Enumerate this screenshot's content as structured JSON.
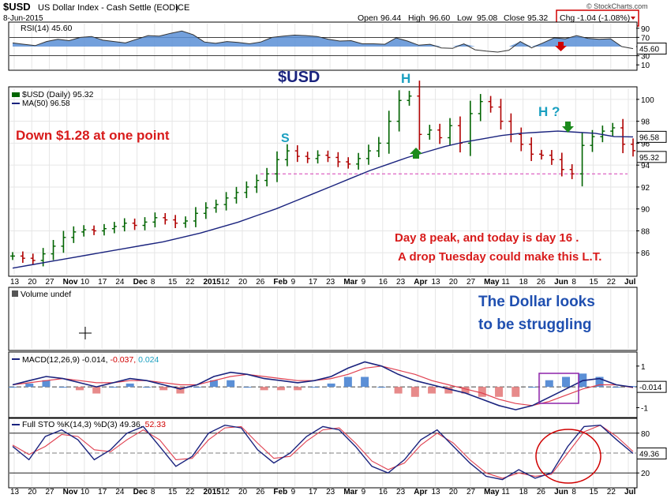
{
  "header": {
    "symbol": "$USD",
    "name": "US Dollar Index - Cash Settle (EOD)",
    "exchange": "ICE",
    "date": "8-Jun-2015",
    "open_label": "Open",
    "open": "96.44",
    "high_label": "High",
    "high": "96.60",
    "low_label": "Low",
    "low": "95.08",
    "close_label": "Close",
    "close": "95.32",
    "chg": "Chg -1.04 (-1.08%)",
    "watermark": "© StockCharts.com"
  },
  "colors": {
    "bar_up": "#006400",
    "bar_down": "#b00000",
    "ma": "#1a237e",
    "annotation_red": "#d81b1b",
    "annotation_blue": "#1f4fb0",
    "annotation_cyan": "#1a9fc0",
    "panel_bg": "#ffffff",
    "box_purple": "#8e24aa"
  },
  "x_axis": {
    "labels": [
      "13",
      "20",
      "27",
      "Nov",
      "10",
      "17",
      "24",
      "Dec",
      "8",
      "15",
      "22",
      "2015",
      "12",
      "20",
      "26",
      "Feb",
      "9",
      "17",
      "23",
      "Mar",
      "9",
      "16",
      "23",
      "Apr",
      "13",
      "20",
      "27",
      "May",
      "11",
      "18",
      "26",
      "Jun",
      "8",
      "15",
      "22",
      "Jul"
    ]
  },
  "chart_data": [
    {
      "panel": "rsi",
      "type": "line",
      "title": "RSI(14) 45.60",
      "series": [
        {
          "name": "RSI(14)",
          "values": [
            58,
            55,
            52,
            61,
            66,
            63,
            70,
            72,
            64,
            61,
            58,
            66,
            74,
            73,
            79,
            84,
            76,
            60,
            57,
            61,
            59,
            56,
            60,
            70,
            73,
            75,
            74,
            72,
            66,
            62,
            63,
            56,
            56,
            55,
            69,
            62,
            53,
            55,
            47,
            46,
            56,
            43,
            40,
            38,
            42,
            61,
            47,
            58,
            69,
            67,
            74,
            68,
            66,
            67,
            50,
            45.6
          ]
        }
      ],
      "ylim": [
        0,
        100
      ],
      "yticks": [
        10,
        30,
        50,
        70,
        90
      ],
      "reference_lines": [
        30,
        70
      ],
      "last_value": "45.60"
    },
    {
      "panel": "price",
      "type": "ohlc",
      "title": "$USD (Daily) 95.32",
      "series": [
        {
          "name": "$USD (Daily)",
          "values": [
            85.7,
            85.5,
            85.3,
            85.9,
            86.6,
            87.4,
            87.9,
            88.1,
            88.0,
            88.2,
            88.4,
            88.7,
            88.5,
            88.8,
            89.2,
            89.0,
            88.7,
            88.9,
            89.6,
            90.1,
            90.4,
            91.0,
            91.5,
            92.0,
            92.6,
            93.2,
            94.5,
            95.3,
            94.8,
            94.6,
            94.9,
            94.7,
            94.3,
            94.1,
            94.6,
            95.3,
            96.0,
            98.0,
            99.9,
            100.3,
            96.8,
            97.2,
            96.5,
            97.6,
            96.0,
            98.7,
            99.8,
            99.3,
            98.0,
            96.8,
            95.9,
            95.0,
            94.9,
            94.5,
            93.6,
            93.2,
            95.8,
            96.6,
            97.1,
            97.4,
            95.9,
            95.32
          ]
        },
        {
          "name": "MA(50)",
          "values": [
            84.6,
            84.9,
            85.2,
            85.5,
            85.8,
            86.1,
            86.4,
            86.7,
            87.0,
            87.4,
            87.8,
            88.3,
            88.8,
            89.4,
            90.0,
            90.7,
            91.4,
            92.1,
            92.8,
            93.5,
            94.1,
            94.7,
            95.2,
            95.7,
            96.1,
            96.4,
            96.7,
            96.9,
            97.0,
            97.1,
            97.0,
            96.9,
            96.6,
            96.58
          ]
        }
      ],
      "ylim": [
        84,
        101
      ],
      "yticks": [
        86,
        88,
        90,
        92,
        94,
        96,
        98,
        100
      ],
      "support_line": 93.2,
      "ma_label": "MA(50) 96.58",
      "ma_last": "96.58",
      "close_last": "95.32"
    },
    {
      "panel": "volume",
      "type": "bar",
      "title": "Volume undef"
    },
    {
      "panel": "macd",
      "type": "line",
      "title_prefix": "MACD(12,26,9)",
      "title_values": [
        "-0.014",
        "-0.037",
        "0.024"
      ],
      "series": [
        {
          "name": "MACD",
          "values": [
            0.1,
            0.3,
            0.5,
            0.4,
            0.2,
            0.0,
            0.2,
            0.4,
            0.3,
            0.1,
            -0.1,
            0.1,
            0.5,
            0.7,
            0.6,
            0.4,
            0.3,
            0.2,
            0.3,
            0.5,
            0.9,
            1.2,
            1.0,
            0.6,
            0.3,
            0.1,
            -0.1,
            -0.3,
            -0.6,
            -0.9,
            -1.1,
            -0.9,
            -0.5,
            -0.1,
            0.3,
            0.4,
            0.1,
            -0.014
          ]
        },
        {
          "name": "Signal",
          "values": [
            0.1,
            0.2,
            0.3,
            0.4,
            0.3,
            0.2,
            0.2,
            0.3,
            0.3,
            0.2,
            0.1,
            0.1,
            0.3,
            0.5,
            0.6,
            0.5,
            0.4,
            0.3,
            0.3,
            0.4,
            0.6,
            0.9,
            1.0,
            0.8,
            0.6,
            0.3,
            0.1,
            -0.1,
            -0.3,
            -0.6,
            -0.8,
            -0.9,
            -0.7,
            -0.4,
            -0.1,
            0.1,
            0.1,
            -0.037
          ]
        }
      ],
      "ylim": [
        -1.4,
        1.6
      ],
      "yticks": [
        -1,
        0,
        1
      ],
      "last_value": "-0.014"
    },
    {
      "panel": "stochastic",
      "type": "line",
      "title_prefix": "Full STO %K(14,3) %D(3)",
      "title_values": [
        "49.36",
        "52.33"
      ],
      "series": [
        {
          "name": "%K",
          "values": [
            60,
            40,
            75,
            85,
            70,
            40,
            55,
            80,
            90,
            60,
            30,
            45,
            80,
            92,
            88,
            55,
            35,
            50,
            75,
            90,
            85,
            60,
            30,
            20,
            40,
            70,
            85,
            60,
            35,
            15,
            10,
            25,
            12,
            20,
            60,
            90,
            92,
            70,
            49.36
          ]
        },
        {
          "name": "%D",
          "values": [
            62,
            48,
            60,
            78,
            75,
            55,
            52,
            70,
            85,
            70,
            40,
            42,
            70,
            88,
            90,
            65,
            42,
            45,
            68,
            85,
            88,
            65,
            38,
            25,
            35,
            62,
            80,
            65,
            40,
            20,
            12,
            20,
            15,
            18,
            50,
            82,
            92,
            75,
            52.33
          ]
        }
      ],
      "ylim": [
        0,
        100
      ],
      "yticks": [
        20,
        80
      ],
      "last_value": "49.36"
    }
  ],
  "annotations": {
    "usd_title": "$USD",
    "down_note": "Down  $1.28 at one point",
    "label_s": "S",
    "label_h1": "H",
    "label_h2": "H ?",
    "day_note_1": "Day 8 peak, and today is day 16 .",
    "day_note_2": "A drop Tuesday could make this L.T.",
    "dollar_note_1": "The Dollar looks",
    "dollar_note_2": "to be struggling"
  }
}
